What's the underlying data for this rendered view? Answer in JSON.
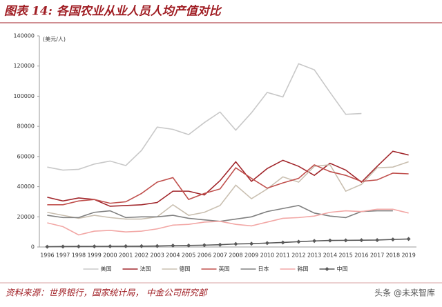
{
  "chart_data": {
    "type": "line",
    "title": "图表 14: 各国农业从业人员人均产值对比",
    "y_label": "(美元/人)",
    "source": "资料来源：世界银行，国家统计局， 中金公司研究部",
    "watermark": "头条 @未来智库",
    "categories": [
      "1996",
      "1997",
      "1998",
      "1999",
      "2000",
      "2001",
      "2002",
      "2003",
      "2004",
      "2005",
      "2006",
      "2007",
      "2008",
      "2009",
      "2010",
      "2011",
      "2012",
      "2013",
      "2014",
      "2015",
      "2016",
      "2017",
      "2018",
      "2019"
    ],
    "ylim": [
      0,
      140000
    ],
    "yticks": [
      0,
      20000,
      40000,
      60000,
      80000,
      100000,
      120000,
      140000
    ],
    "grid": false,
    "legend": "bottom",
    "series": [
      {
        "name": "美国",
        "color": "#c8c8c8",
        "values": [
          53000,
          51000,
          51500,
          55000,
          57000,
          54000,
          64000,
          79500,
          78000,
          74500,
          82500,
          89500,
          77500,
          89000,
          102500,
          99500,
          121500,
          117500,
          102500,
          88000,
          88500,
          null,
          null,
          null
        ]
      },
      {
        "name": "法国",
        "color": "#a1262b",
        "values": [
          33000,
          30500,
          32500,
          31500,
          27000,
          27500,
          28000,
          29500,
          37000,
          37000,
          34500,
          44000,
          56500,
          43500,
          52000,
          57500,
          53500,
          47500,
          55500,
          51000,
          43000,
          53500,
          63500,
          61000
        ]
      },
      {
        "name": "德国",
        "color": "#c9bfb0",
        "values": [
          23000,
          21000,
          19000,
          21000,
          19500,
          18500,
          18500,
          20000,
          28000,
          21000,
          23000,
          27500,
          41000,
          32000,
          38500,
          46500,
          43000,
          53500,
          54500,
          37000,
          41500,
          52500,
          53000,
          56500
        ]
      },
      {
        "name": "英国",
        "color": "#c0504d",
        "values": [
          28000,
          28000,
          30500,
          31500,
          29000,
          30000,
          35500,
          43000,
          46000,
          31500,
          35500,
          38500,
          52500,
          45500,
          39000,
          42500,
          45500,
          54500,
          50000,
          47500,
          43500,
          44500,
          49000,
          48500
        ]
      },
      {
        "name": "日本",
        "color": "#808080",
        "values": [
          21000,
          19500,
          19500,
          23000,
          24000,
          19500,
          20000,
          20000,
          21000,
          19000,
          18000,
          17000,
          18500,
          20000,
          23500,
          25500,
          27500,
          22500,
          20500,
          19500,
          23500,
          24000,
          24000,
          null
        ]
      },
      {
        "name": "韩国",
        "color": "#f2a7a5",
        "values": [
          16000,
          13500,
          8000,
          10500,
          11000,
          10000,
          10500,
          12000,
          14500,
          15000,
          16500,
          17000,
          15000,
          14000,
          16500,
          19000,
          19500,
          20500,
          23000,
          24000,
          23500,
          25000,
          25000,
          22500
        ]
      },
      {
        "name": "中国",
        "color": "#595959",
        "marker": "diamond",
        "values": [
          200,
          300,
          350,
          400,
          450,
          500,
          550,
          650,
          900,
          1000,
          1200,
          1500,
          2000,
          2200,
          2600,
          3000,
          3500,
          4000,
          4300,
          4400,
          4500,
          4600,
          5000,
          5300
        ]
      }
    ]
  }
}
